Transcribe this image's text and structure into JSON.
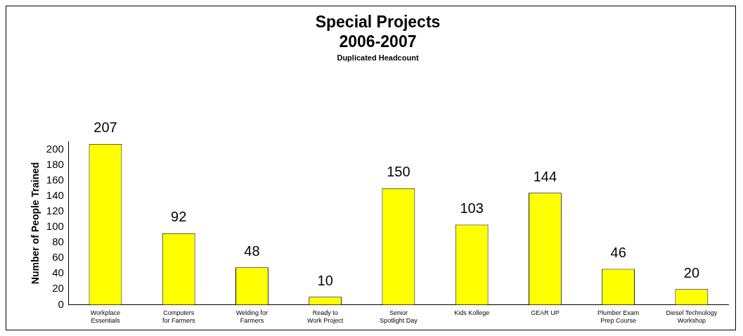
{
  "chart_data": {
    "type": "bar",
    "title": "Special Projects\n2006-2007",
    "subtitle": "Duplicated Headcount",
    "ylabel": "Number of People Trained",
    "categories": [
      "Workplace Essentials",
      "Computers for Farmers",
      "Welding for Farmers",
      "Ready to Work Project",
      "Senior Spotlight Day",
      "Kids Kollege",
      "GEAR UP",
      "Plumber Exam Prep Course",
      "Diesel Technology Workshop"
    ],
    "values": [
      207,
      92,
      48,
      10,
      150,
      103,
      144,
      46,
      20
    ],
    "color": "#ffff00",
    "ylim": [
      0,
      210
    ],
    "yticks": [
      0,
      20,
      40,
      60,
      80,
      100,
      120,
      140,
      160,
      180,
      200
    ],
    "grid": false,
    "legend": false,
    "data_labels": true
  }
}
